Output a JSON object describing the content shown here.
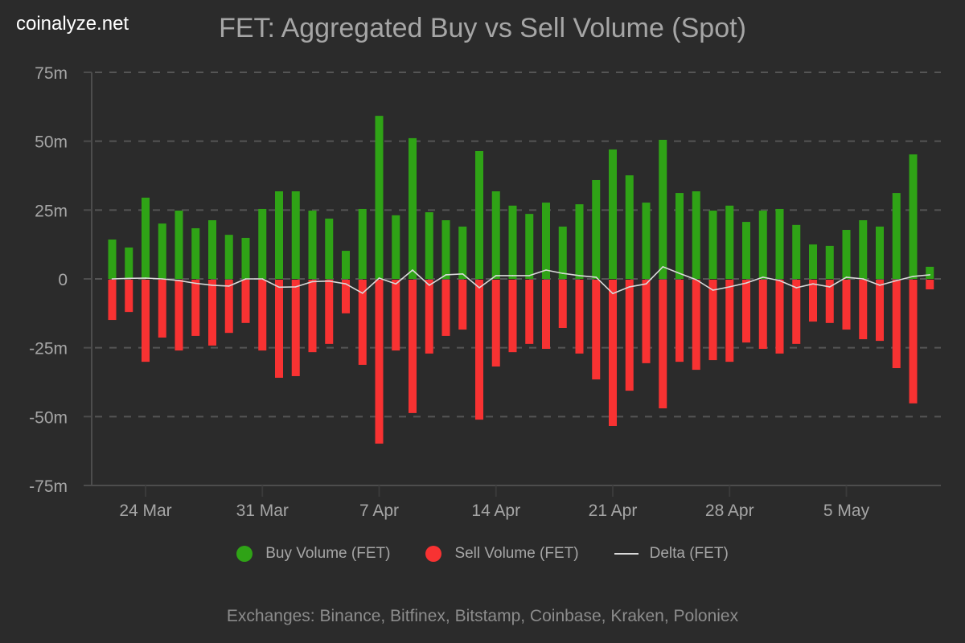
{
  "brand": "coinalyze.net",
  "chart_data": {
    "type": "bar",
    "title": "FET: Aggregated Buy vs Sell Volume (Spot)",
    "xlabel": "",
    "ylabel": "",
    "ylim": [
      -75,
      75
    ],
    "y_unit": "m",
    "y_ticks": [
      {
        "value": 75,
        "label": "75m"
      },
      {
        "value": 50,
        "label": "50m"
      },
      {
        "value": 25,
        "label": "25m"
      },
      {
        "value": 0,
        "label": "0"
      },
      {
        "value": -25,
        "label": "-25m"
      },
      {
        "value": -50,
        "label": "-50m"
      },
      {
        "value": -75,
        "label": "-75m"
      }
    ],
    "x_ticks": [
      {
        "index": 2,
        "label": "24 Mar"
      },
      {
        "index": 9,
        "label": "31 Mar"
      },
      {
        "index": 16,
        "label": "7 Apr"
      },
      {
        "index": 23,
        "label": "14 Apr"
      },
      {
        "index": 30,
        "label": "21 Apr"
      },
      {
        "index": 37,
        "label": "28 Apr"
      },
      {
        "index": 44,
        "label": "5 May"
      }
    ],
    "grid": true,
    "legend_position": "bottom",
    "categories": [
      "22 Mar",
      "23 Mar",
      "24 Mar",
      "25 Mar",
      "26 Mar",
      "27 Mar",
      "28 Mar",
      "29 Mar",
      "30 Mar",
      "31 Mar",
      "1 Apr",
      "2 Apr",
      "3 Apr",
      "4 Apr",
      "5 Apr",
      "6 Apr",
      "7 Apr",
      "8 Apr",
      "9 Apr",
      "10 Apr",
      "11 Apr",
      "12 Apr",
      "13 Apr",
      "14 Apr",
      "15 Apr",
      "16 Apr",
      "17 Apr",
      "18 Apr",
      "19 Apr",
      "20 Apr",
      "21 Apr",
      "22 Apr",
      "23 Apr",
      "24 Apr",
      "25 Apr",
      "26 Apr",
      "27 Apr",
      "28 Apr",
      "29 Apr",
      "30 Apr",
      "1 May",
      "2 May",
      "3 May",
      "4 May",
      "5 May",
      "6 May",
      "7 May",
      "8 May",
      "9 May",
      "10 May"
    ],
    "series": [
      {
        "name": "Buy Volume (FET)",
        "type": "bar",
        "color": "#2fa316",
        "values": [
          14.3,
          11.4,
          29.5,
          20.1,
          24.8,
          18.4,
          21.3,
          16.0,
          14.9,
          25.4,
          31.8,
          31.8,
          24.8,
          21.9,
          10.2,
          25.4,
          59.2,
          23.1,
          51.1,
          24.2,
          21.3,
          19.0,
          46.4,
          31.8,
          26.6,
          23.6,
          27.7,
          19.0,
          27.1,
          35.9,
          47.0,
          37.6,
          27.7,
          50.5,
          31.2,
          31.8,
          24.8,
          26.6,
          20.7,
          24.8,
          25.4,
          19.6,
          12.5,
          12.0,
          17.8,
          21.3,
          19.0,
          31.2,
          45.2,
          4.4
        ]
      },
      {
        "name": "Sell Volume (FET)",
        "type": "bar",
        "color": "#f83232",
        "values": [
          -14.9,
          -12.0,
          -30.1,
          -21.3,
          -26.0,
          -20.7,
          -24.2,
          -19.6,
          -16.0,
          -26.0,
          -35.9,
          -35.3,
          -26.6,
          -23.6,
          -12.5,
          -31.2,
          -59.8,
          -26.0,
          -48.7,
          -27.1,
          -20.7,
          -18.4,
          -51.1,
          -31.8,
          -26.6,
          -23.6,
          -25.4,
          -17.8,
          -27.1,
          -36.5,
          -53.4,
          -40.6,
          -30.6,
          -47.0,
          -30.1,
          -33.0,
          -29.5,
          -30.1,
          -23.1,
          -25.4,
          -27.1,
          -23.6,
          -15.5,
          -16.0,
          -18.4,
          -21.9,
          -22.5,
          -32.4,
          -45.2,
          -3.8
        ]
      },
      {
        "name": "Delta (FET)",
        "type": "line",
        "color": "#d9d9d9",
        "values": [
          0.0,
          0.2,
          0.3,
          0.0,
          -0.6,
          -1.6,
          -2.3,
          -2.6,
          0.0,
          0.0,
          -3.0,
          -2.9,
          -1.0,
          -0.8,
          -1.8,
          -5.2,
          0.3,
          -1.8,
          3.2,
          -2.3,
          1.5,
          1.8,
          -3.2,
          1.2,
          1.2,
          1.2,
          3.2,
          2.0,
          1.2,
          0.6,
          -5.3,
          -2.9,
          -1.8,
          4.4,
          2.0,
          -0.3,
          -4.1,
          -2.9,
          -1.5,
          0.6,
          -0.6,
          -3.2,
          -1.8,
          -2.9,
          0.6,
          0.0,
          -2.3,
          -0.6,
          0.9,
          1.5
        ]
      }
    ]
  },
  "legend": {
    "items": [
      {
        "label": "Buy Volume (FET)",
        "color": "#2fa316",
        "symbol": "circle"
      },
      {
        "label": "Sell Volume (FET)",
        "color": "#f83232",
        "symbol": "circle"
      },
      {
        "label": "Delta (FET)",
        "color": "#d9d9d9",
        "symbol": "line"
      }
    ]
  },
  "footer": "Exchanges: Binance, Bitfinex, Bitstamp, Coinbase, Kraken, Poloniex"
}
